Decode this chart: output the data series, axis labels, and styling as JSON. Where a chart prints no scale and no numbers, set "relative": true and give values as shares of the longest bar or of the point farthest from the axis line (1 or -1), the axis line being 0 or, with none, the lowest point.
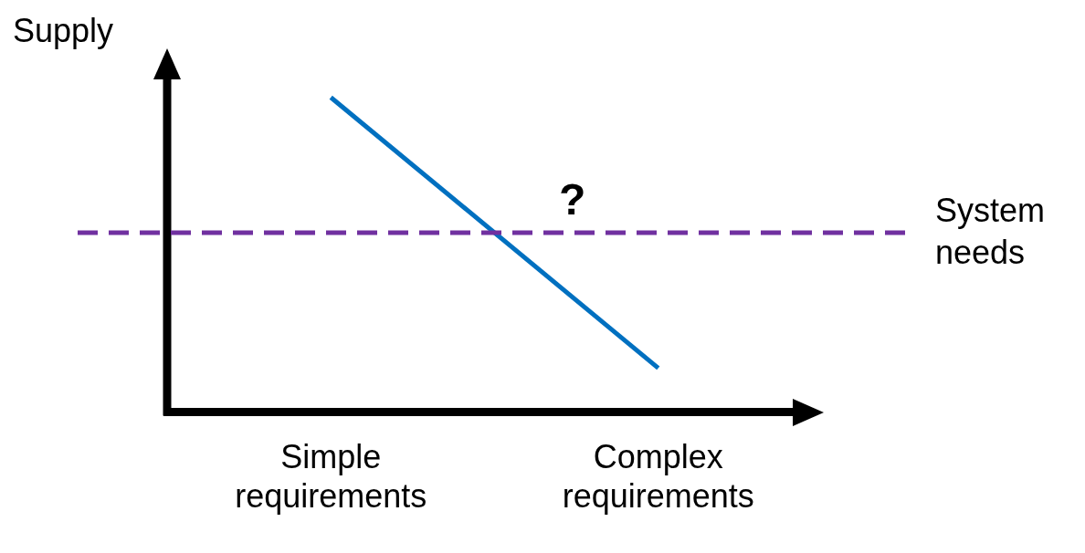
{
  "chart_data": {
    "type": "line",
    "relative": true,
    "ylabel": "Supply",
    "categories": [
      "Simple requirements",
      "Complex requirements"
    ],
    "series": [
      {
        "color": "#0070c0",
        "values": [
          1,
          0.14
        ]
      }
    ],
    "ref_lines": [
      {
        "axis": "y",
        "value": 0.57,
        "label": "System needs",
        "color": "#7030a0",
        "line_style": "dashed"
      }
    ],
    "annotations": [
      "?"
    ],
    "legend": false,
    "marker": "none",
    "line_style": "solid",
    "grid": false
  }
}
